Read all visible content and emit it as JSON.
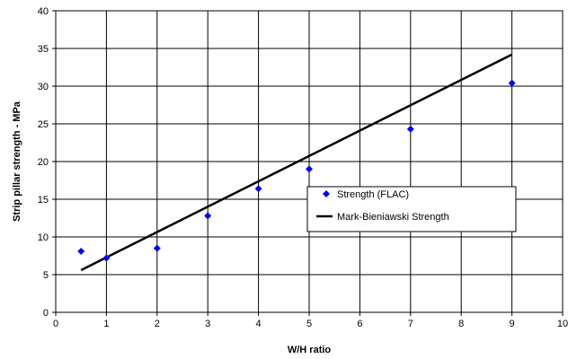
{
  "chart_data": {
    "type": "scatter",
    "xlabel": "W/H ratio",
    "ylabel": "Strip pillar strength - MPa",
    "xlim": [
      0,
      10
    ],
    "ylim": [
      0,
      40
    ],
    "x_ticks": [
      "0",
      "1",
      "2",
      "3",
      "4",
      "5",
      "6",
      "7",
      "8",
      "9",
      "10"
    ],
    "y_ticks": [
      "0",
      "5",
      "10",
      "15",
      "20",
      "25",
      "30",
      "35",
      "40"
    ],
    "grid": true,
    "legend_position": "center-right",
    "series": [
      {
        "name": "Strength (FLAC)",
        "type": "scatter",
        "marker": "diamond",
        "color": "#0000ff",
        "x": [
          0.5,
          1,
          2,
          3,
          4,
          5,
          7,
          9
        ],
        "y": [
          8.1,
          7.2,
          8.5,
          12.8,
          16.4,
          19.0,
          24.3,
          30.4
        ]
      },
      {
        "name": "Mark-Bieniawski Strength",
        "type": "line",
        "color": "#000000",
        "x": [
          0.5,
          9
        ],
        "y": [
          5.6,
          34.2
        ]
      }
    ]
  }
}
